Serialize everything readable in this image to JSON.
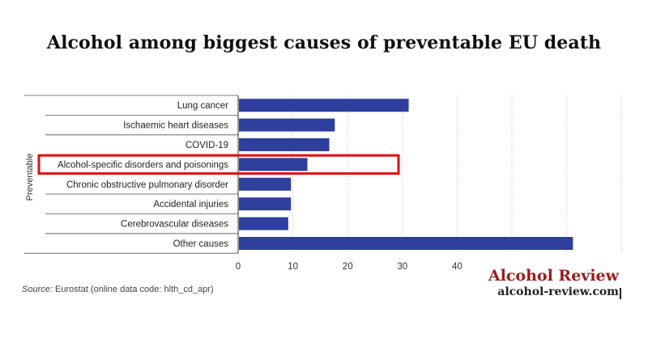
{
  "page": {
    "title": "Alcohol among biggest causes of preventable EU death",
    "source_label": "Source:",
    "source_text": "Eurostat (online data code: hlth_cd_apr)",
    "brand_name": "Alcohol Review",
    "brand_url": "alcohol-review.com"
  },
  "chart_data": {
    "type": "bar",
    "orientation": "horizontal",
    "title": "Alcohol among biggest causes of preventable EU death",
    "group_label": "Preventable",
    "categories": [
      "Lung cancer",
      "Ischaemic heart diseases",
      "COVID-19",
      "Alcohol-specific disorders and poisonings",
      "Chronic obstructive pulmonary disorder",
      "Accidental injuries",
      "Cerebrovascular diseases",
      "Other causes"
    ],
    "values": [
      31,
      17.5,
      16.5,
      12.5,
      9.5,
      9.5,
      9,
      61
    ],
    "highlighted_category": "Alcohol-specific disorders and poisonings",
    "xlim": [
      0,
      70
    ],
    "xticks": [
      0,
      10,
      20,
      30,
      40
    ],
    "grid": true,
    "bar_color": "#2e3f9e",
    "highlight_color": "#dd1111"
  }
}
